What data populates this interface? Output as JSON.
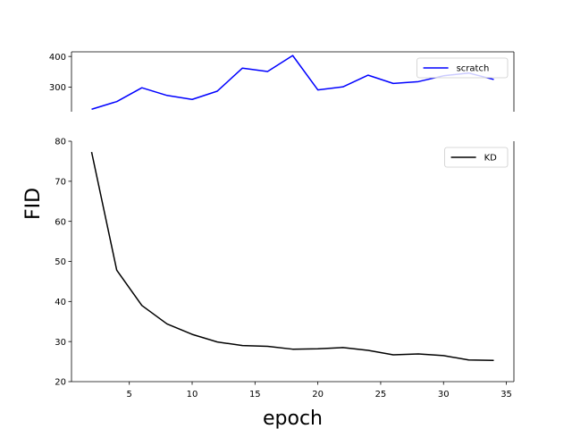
{
  "chart_data": [
    {
      "type": "line",
      "panel": "top",
      "x": [
        2,
        4,
        6,
        8,
        10,
        12,
        14,
        16,
        18,
        20,
        22,
        24,
        26,
        28,
        30,
        32,
        34
      ],
      "series": [
        {
          "name": "scratch",
          "color": "#0000ff",
          "values": [
            228,
            253,
            298,
            273,
            260,
            287,
            362,
            351,
            403,
            291,
            301,
            339,
            312,
            318,
            337,
            346,
            325
          ]
        }
      ],
      "ylim": [
        220,
        415
      ],
      "xlim": [
        0.4,
        35.6
      ],
      "yticks": [
        300,
        400
      ],
      "yticklabels": [
        "300",
        "400"
      ],
      "legend_position": "top-right",
      "spines": {
        "top": true,
        "bottom": false,
        "left": true,
        "right": true
      }
    },
    {
      "type": "line",
      "panel": "bottom",
      "x": [
        2,
        4,
        6,
        8,
        10,
        12,
        14,
        16,
        18,
        20,
        22,
        24,
        26,
        28,
        30,
        32,
        34
      ],
      "series": [
        {
          "name": "KD",
          "color": "#000000",
          "values": [
            77.3,
            47.8,
            39.0,
            34.4,
            31.8,
            29.9,
            29.0,
            28.8,
            28.1,
            28.2,
            28.5,
            27.8,
            26.7,
            26.9,
            26.5,
            25.4,
            25.3
          ]
        }
      ],
      "xlabel": "epoch",
      "ylabel": "FID",
      "ylim": [
        20,
        80
      ],
      "xlim": [
        0.4,
        35.6
      ],
      "yticks": [
        20,
        30,
        40,
        50,
        60,
        70,
        80
      ],
      "yticklabels": [
        "20",
        "30",
        "40",
        "50",
        "60",
        "70",
        "80"
      ],
      "xticks": [
        5,
        10,
        15,
        20,
        25,
        30,
        35
      ],
      "xticklabels": [
        "5",
        "10",
        "15",
        "20",
        "25",
        "30",
        "35"
      ],
      "legend_position": "top-right",
      "spines": {
        "top": false,
        "bottom": true,
        "left": true,
        "right": true
      }
    }
  ]
}
